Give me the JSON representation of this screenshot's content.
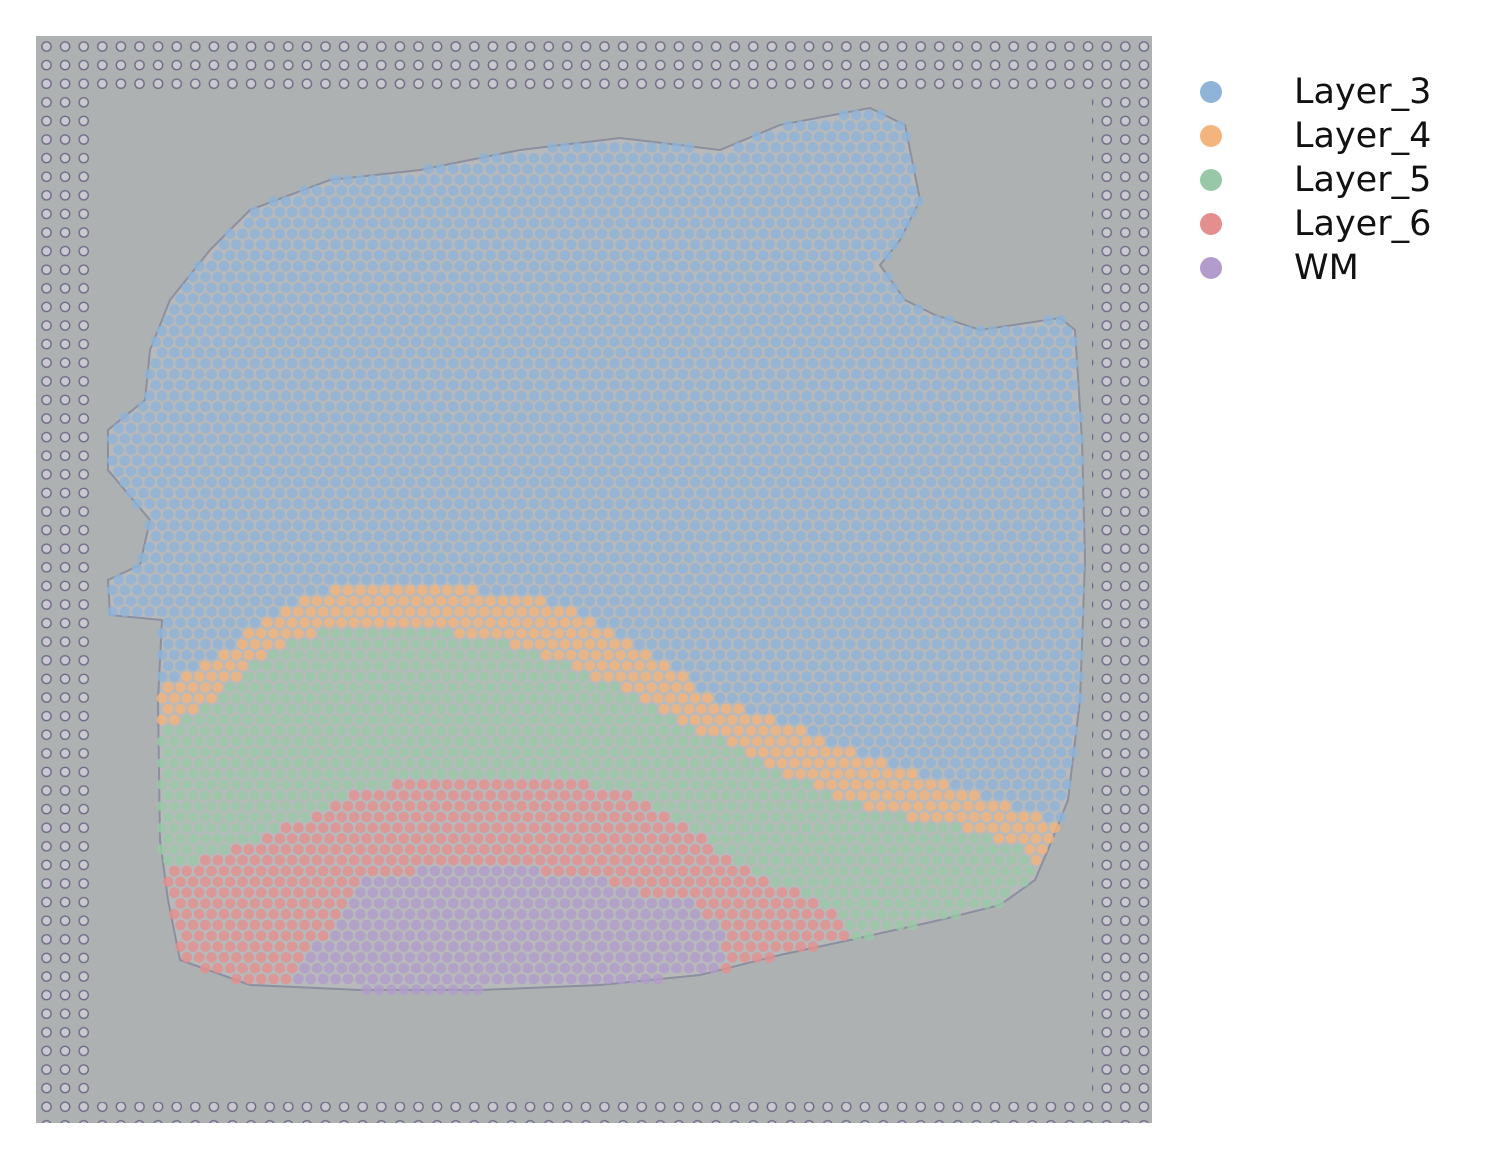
{
  "chart_data": {
    "type": "scatter",
    "subtype": "spatial-spot-map over tissue image",
    "title": "",
    "xlabel": "",
    "ylabel": "",
    "axes_visible": false,
    "grid": false,
    "legend_position": "right",
    "background": "grayscale tissue section image with fiducial dot frame",
    "series": [
      {
        "name": "Layer_3",
        "color": "#8fb4d8",
        "region": "upper tissue area (majority of spots)"
      },
      {
        "name": "Layer_4",
        "color": "#f4b47d",
        "region": "thin diagonal band below Layer_3"
      },
      {
        "name": "Layer_5",
        "color": "#98c8a7",
        "region": "band below Layer_4"
      },
      {
        "name": "Layer_6",
        "color": "#e58e8f",
        "region": "lower band"
      },
      {
        "name": "WM",
        "color": "#b29ccc",
        "region": "bottom-most region"
      }
    ]
  },
  "legend": {
    "items": [
      {
        "label": "Layer_3",
        "color": "#8fb4d8"
      },
      {
        "label": "Layer_4",
        "color": "#f4b47d"
      },
      {
        "label": "Layer_5",
        "color": "#98c8a7"
      },
      {
        "label": "Layer_6",
        "color": "#e58e8f"
      },
      {
        "label": "WM",
        "color": "#b29ccc"
      }
    ]
  }
}
